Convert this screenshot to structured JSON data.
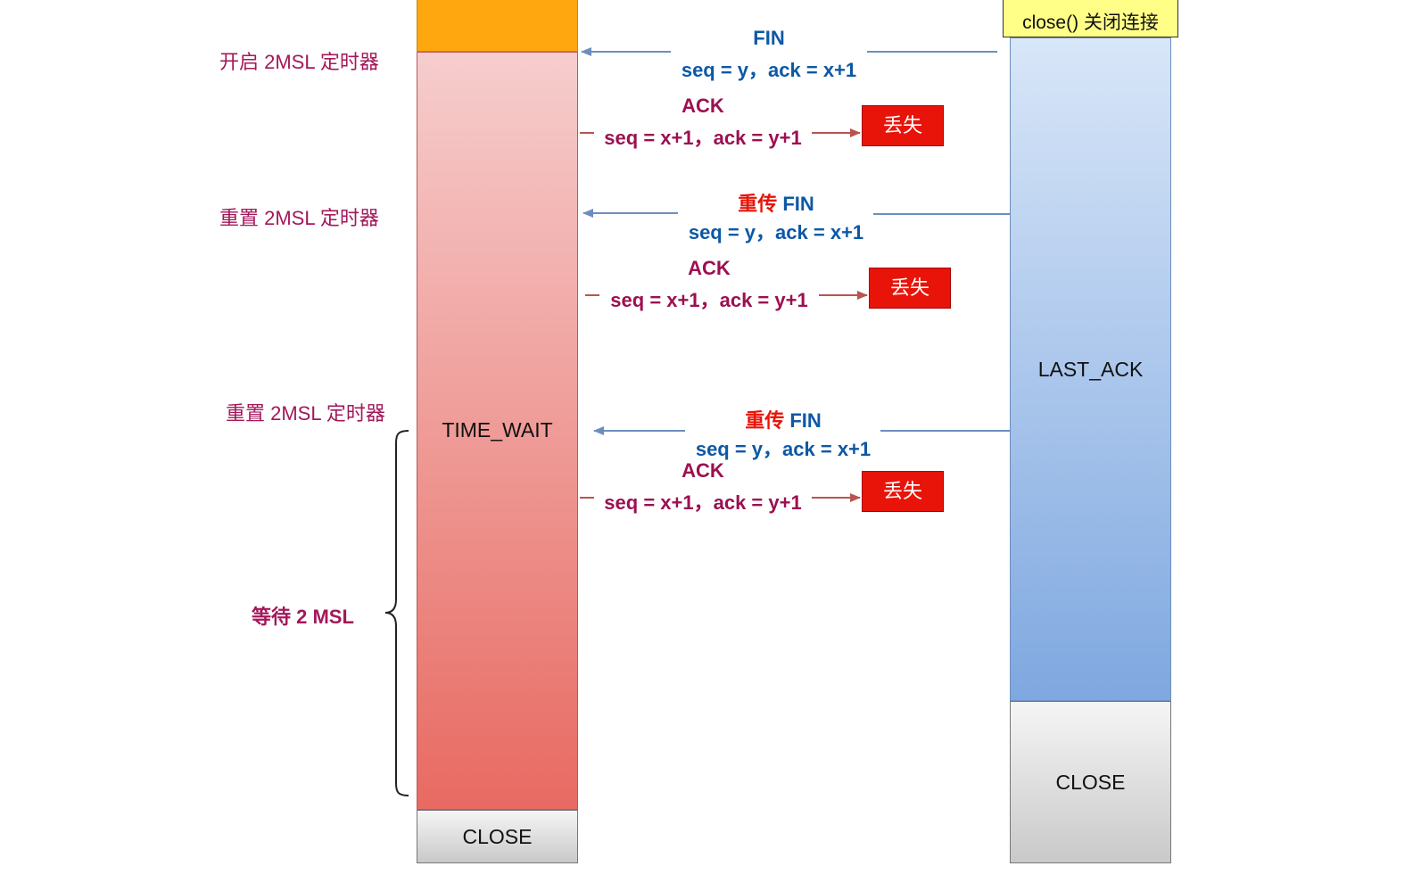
{
  "left": {
    "state_time_wait": "TIME_WAIT",
    "state_close": "CLOSE"
  },
  "right": {
    "close_call": "close() 关闭连接",
    "state_last_ack": "LAST_ACK",
    "state_close": "CLOSE"
  },
  "notes": {
    "start_timer": "开启 2MSL 定时器",
    "reset_timer_1": "重置 2MSL 定时器",
    "reset_timer_2": "重置 2MSL 定时器",
    "wait_2msl": "等待 2 MSL"
  },
  "messages": {
    "fin1": {
      "title": "FIN",
      "seq": "seq = y，ack = x+1"
    },
    "ack1": {
      "title": "ACK",
      "seq": "seq = x+1，ack = y+1",
      "lost": "丢失"
    },
    "fin2": {
      "title_prefix": "重传",
      "title": "FIN",
      "seq": "seq = y，ack = x+1"
    },
    "ack2": {
      "title": "ACK",
      "seq": "seq = x+1，ack = y+1",
      "lost": "丢失"
    },
    "fin3": {
      "title_prefix": "重传",
      "title": "FIN",
      "seq": "seq = y，ack = x+1"
    },
    "ack3": {
      "title": "ACK",
      "seq": "seq = x+1，ack = y+1",
      "lost": "丢失"
    }
  },
  "colors": {
    "fin_blue": "#0d58a6",
    "ack_maroon": "#9c1050",
    "retransmit_red": "#e8140a",
    "time_wait_top": "#f6cdcd",
    "time_wait_bottom": "#e86a62",
    "last_ack_top": "#d8e6f8",
    "last_ack_bottom": "#7fa8e0",
    "orange_block": "#ffa70f",
    "close_call_bg": "#ffff88"
  }
}
